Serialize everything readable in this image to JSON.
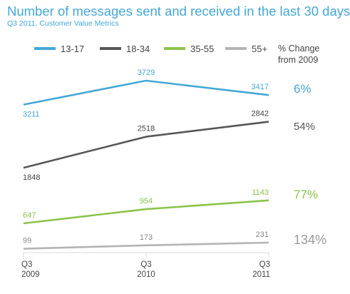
{
  "title": "Number of messages sent and received in the last 30 days",
  "subtitle": "Q3 2011, Customer Value Metrics",
  "chart_data": {
    "type": "line",
    "title": "Number of messages sent and received in the last 30 days",
    "subtitle": "Q3 2011, Customer Value Metrics",
    "categories": [
      [
        "Q3",
        "2009"
      ],
      [
        "Q3",
        "2010"
      ],
      [
        "Q3",
        "2011"
      ]
    ],
    "ylim": [
      0,
      3729
    ],
    "grid": false,
    "legend_position": "top",
    "change_header": [
      "% Change",
      "from 2009"
    ],
    "series": [
      {
        "name": "13-17",
        "values": [
          3211,
          3729,
          3417
        ],
        "labels": [
          "3211",
          "3729",
          "3417"
        ],
        "change": "6%",
        "color": "#45a7d6",
        "change_color": "#45a7d6"
      },
      {
        "name": "18-34",
        "values": [
          1848,
          2518,
          2842
        ],
        "labels": [
          "1848",
          "2518",
          "2842"
        ],
        "change": "54%",
        "color": "#575757",
        "change_color": "#575757"
      },
      {
        "name": "35-55",
        "values": [
          647,
          954,
          1143
        ],
        "labels": [
          "647",
          "954",
          "1143"
        ],
        "change": "77%",
        "color": "#8cc34b",
        "change_color": "#8cc34b"
      },
      {
        "name": "55+",
        "values": [
          99,
          173,
          231
        ],
        "labels": [
          "99",
          "173",
          "231"
        ],
        "change": "134%",
        "color": "#b4b4b4",
        "change_color": "#9a9a9a"
      }
    ]
  }
}
